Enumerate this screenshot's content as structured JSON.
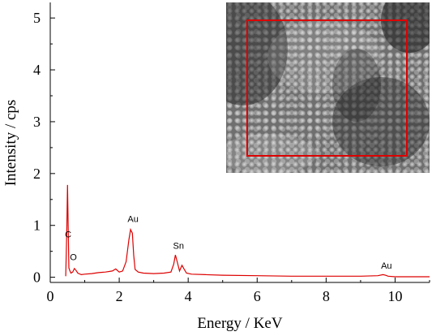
{
  "chart_data": {
    "type": "line",
    "xlabel": "Energy / KeV",
    "ylabel": "Intensity / cps",
    "xlim": [
      0,
      11
    ],
    "ylim": [
      -0.1,
      5.3
    ],
    "x_ticks": [
      0,
      2,
      4,
      6,
      8,
      10
    ],
    "y_ticks": [
      0,
      1,
      2,
      3,
      4,
      5
    ],
    "line_color": "#dd0000",
    "series": [
      {
        "x": [
          0.45,
          0.48,
          0.5,
          0.52,
          0.54,
          0.57,
          0.6,
          0.65,
          0.7,
          0.75,
          0.8,
          0.9,
          1.0,
          1.2,
          1.4,
          1.6,
          1.8,
          1.9,
          2.0,
          2.1,
          2.2,
          2.28,
          2.33,
          2.38,
          2.42,
          2.46,
          2.55,
          2.7,
          3.0,
          3.3,
          3.5,
          3.58,
          3.63,
          3.68,
          3.75,
          3.82,
          3.87,
          3.95,
          4.1,
          4.5,
          5.0,
          6.0,
          7.0,
          8.0,
          9.0,
          9.5,
          9.65,
          9.72,
          9.8,
          10.0,
          11.0
        ],
        "y": [
          0.02,
          0.9,
          1.78,
          1.0,
          0.18,
          0.12,
          0.08,
          0.1,
          0.17,
          0.13,
          0.08,
          0.05,
          0.06,
          0.07,
          0.09,
          0.1,
          0.12,
          0.16,
          0.1,
          0.12,
          0.3,
          0.72,
          0.92,
          0.85,
          0.42,
          0.15,
          0.1,
          0.08,
          0.07,
          0.08,
          0.1,
          0.25,
          0.43,
          0.3,
          0.12,
          0.23,
          0.17,
          0.08,
          0.06,
          0.05,
          0.04,
          0.03,
          0.02,
          0.02,
          0.02,
          0.03,
          0.05,
          0.04,
          0.02,
          0.01,
          0.01
        ]
      }
    ],
    "annotations": [
      {
        "text": "C",
        "x": 0.52,
        "y": 0.77
      },
      {
        "text": "O",
        "x": 0.67,
        "y": 0.33
      },
      {
        "text": "Au",
        "x": 2.4,
        "y": 1.07
      },
      {
        "text": "Sn",
        "x": 3.72,
        "y": 0.55
      },
      {
        "text": "Au",
        "x": 9.75,
        "y": 0.17
      }
    ]
  },
  "inset": {
    "frame_color": "#dd0000"
  }
}
